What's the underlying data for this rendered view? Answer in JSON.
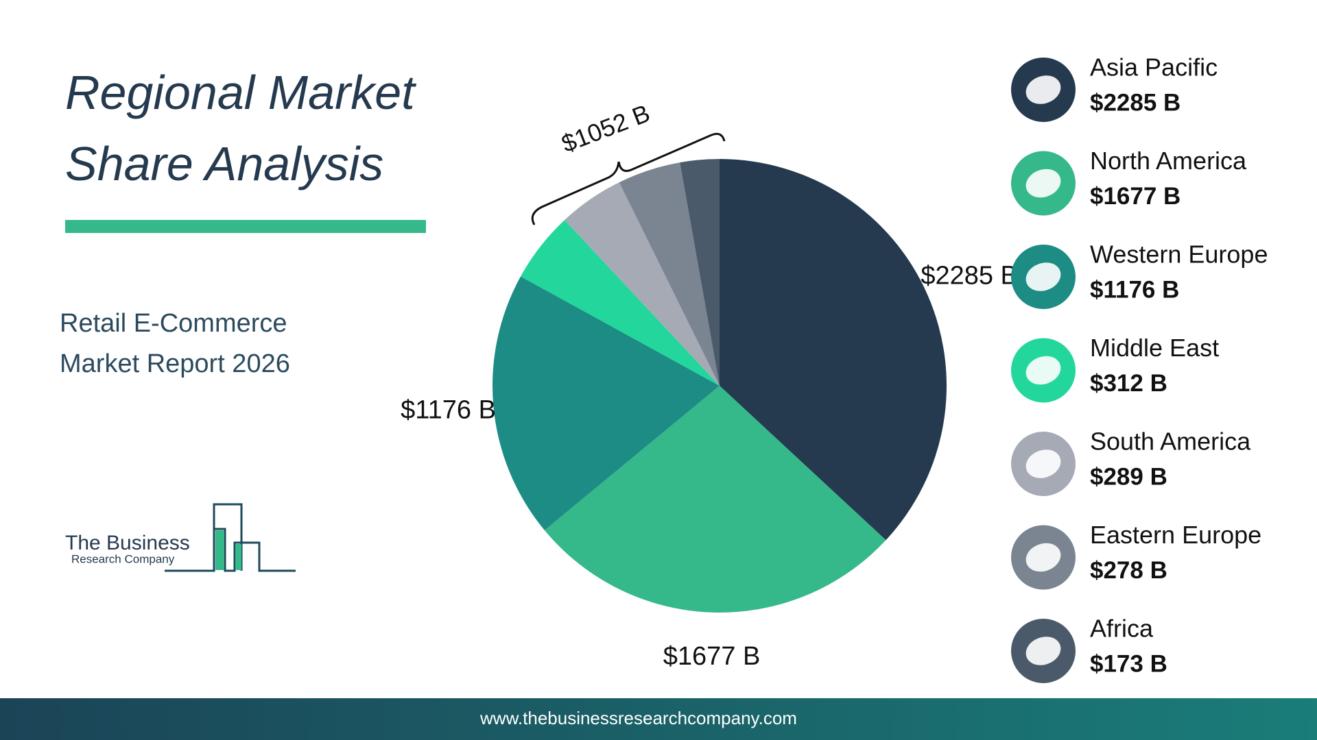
{
  "chart_data": {
    "type": "pie",
    "title": "Regional Market Share Analysis",
    "subtitle": "Retail E-Commerce Market Report 2026",
    "categories": [
      "Asia Pacific",
      "North America",
      "Western Europe",
      "Middle East",
      "South America",
      "Eastern Europe",
      "Africa"
    ],
    "values": [
      2285,
      1677,
      1176,
      312,
      289,
      278,
      173
    ],
    "value_labels": [
      "$2285 B",
      "$1677 B",
      "$1176 B",
      "$312 B",
      "$289 B",
      "$278 B",
      "$173 B"
    ],
    "colors": [
      "#253a4f",
      "#35b88a",
      "#1c8c84",
      "#22d69c",
      "#a6aab5",
      "#7a8591",
      "#4b5a6a"
    ],
    "annotations": [
      {
        "text": "$1052 B"
      }
    ],
    "logo": {
      "line1": "The Business",
      "line2": "Research Company"
    },
    "footer": "www.thebusinessresearchcompany.com"
  }
}
